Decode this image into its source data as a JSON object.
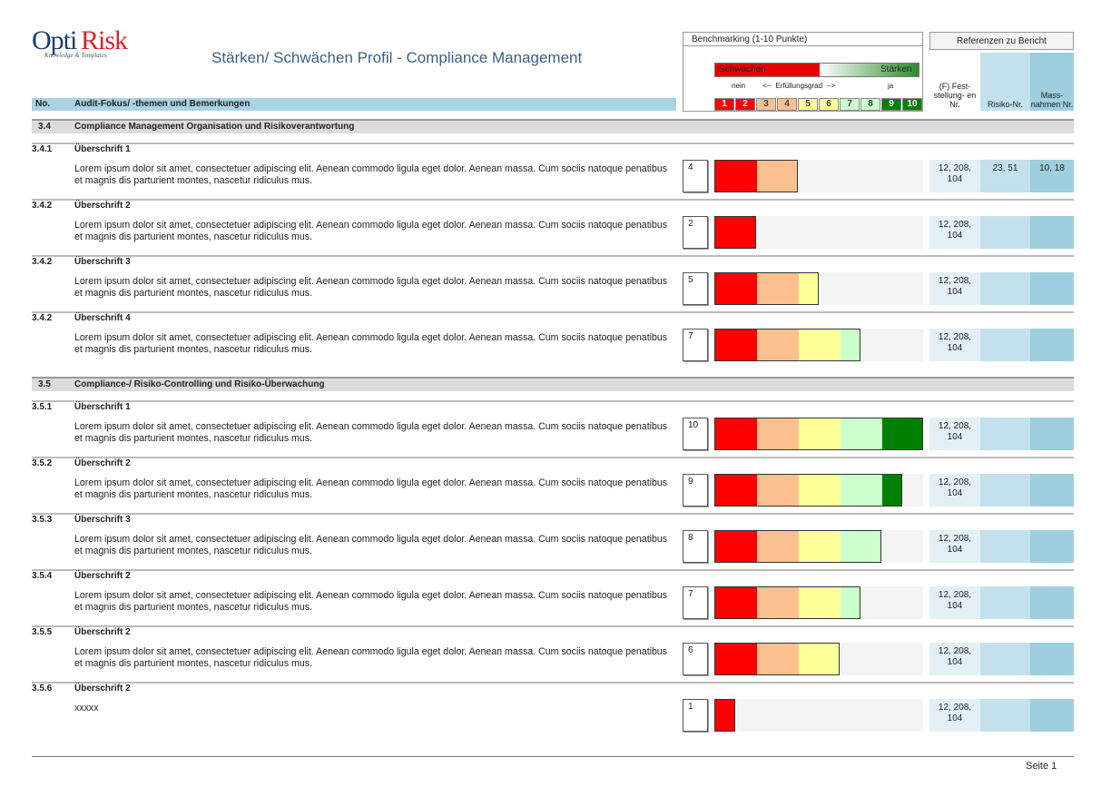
{
  "header": {
    "logo": {
      "name_1": "Opti",
      "name_2": "Risk",
      "tagline": "Knowledge & Templates"
    },
    "title": "Stärken/ Schwächen Profil - Compliance Management",
    "benchmark": {
      "title": "Benchmarking (1-10 Punkte)",
      "weak": "Schwächen",
      "strong": "Stärken",
      "no": "nein",
      "scale_label": "<--  Erfüllungsgrad  -->",
      "yes": "ja",
      "scale": [
        1,
        2,
        3,
        4,
        5,
        6,
        7,
        8,
        9,
        10
      ]
    },
    "references": {
      "title": "Referenzen zu Bericht",
      "columns": [
        "(F) Fest- stellung- en Nr.",
        "Risiko-Nr.",
        "Mass- nahmen Nr."
      ]
    },
    "columns": [
      "No.",
      "Audit-Fokus/ -themen und Bemerkungen"
    ]
  },
  "sections": [
    {
      "id": "3.4",
      "title": "Compliance Management Organisation und Risikoverantwortung",
      "items": [
        {
          "id": "3.4.1",
          "title": "Überschrift 1",
          "text": "Lorem ipsum dolor sit amet, consectetuer adipiscing elit. Aenean commodo ligula eget dolor. Aenean massa. Cum sociis natoque penatibus et magnis dis parturient montes, nascetur ridiculus mus.",
          "score": 4,
          "findings": "12, 208, 104",
          "risks": "23, 51",
          "measures": "10, 18"
        },
        {
          "id": "3.4.2",
          "title": "Überschrift 2",
          "text": "Lorem ipsum dolor sit amet, consectetuer adipiscing elit. Aenean commodo ligula eget dolor. Aenean massa. Cum sociis natoque penatibus et magnis dis parturient montes, nascetur ridiculus mus.",
          "score": 2,
          "findings": "12, 208, 104"
        },
        {
          "id": "3.4.2",
          "title": "Überschrift 3",
          "text": "Lorem ipsum dolor sit amet, consectetuer adipiscing elit. Aenean commodo ligula eget dolor. Aenean massa. Cum sociis natoque penatibus et magnis dis parturient montes, nascetur ridiculus mus.",
          "score": 5,
          "findings": "12, 208, 104"
        },
        {
          "id": "3.4.2",
          "title": "Überschrift 4",
          "text": "Lorem ipsum dolor sit amet, consectetuer adipiscing elit. Aenean commodo ligula eget dolor. Aenean massa. Cum sociis natoque penatibus et magnis dis parturient montes, nascetur ridiculus mus.",
          "score": 7,
          "findings": "12, 208, 104"
        }
      ]
    },
    {
      "id": "3.5",
      "title": "Compliance-/ Risiko-Controlling und Risiko-Überwachung",
      "items": [
        {
          "id": "3.5.1",
          "title": "Überschrift 1",
          "text": "Lorem ipsum dolor sit amet, consectetuer adipiscing elit. Aenean commodo ligula eget dolor. Aenean massa. Cum sociis natoque penatibus et magnis dis parturient montes, nascetur ridiculus mus.",
          "score": 10,
          "findings": "12, 208, 104"
        },
        {
          "id": "3.5.2",
          "title": "Überschrift 2",
          "text": "Lorem ipsum dolor sit amet, consectetuer adipiscing elit. Aenean commodo ligula eget dolor. Aenean massa. Cum sociis natoque penatibus et magnis dis parturient montes, nascetur ridiculus mus.",
          "score": 9,
          "findings": "12, 208, 104"
        },
        {
          "id": "3.5.3",
          "title": "Überschrift 3",
          "text": "Lorem ipsum dolor sit amet, consectetuer adipiscing elit. Aenean commodo ligula eget dolor. Aenean massa. Cum sociis natoque penatibus et magnis dis parturient montes, nascetur ridiculus mus.",
          "score": 8,
          "findings": "12, 208, 104"
        },
        {
          "id": "3.5.4",
          "title": "Überschrift 2",
          "text": "Lorem ipsum dolor sit amet, consectetuer adipiscing elit. Aenean commodo ligula eget dolor. Aenean massa. Cum sociis natoque penatibus et magnis dis parturient montes, nascetur ridiculus mus.",
          "score": 7,
          "findings": "12, 208, 104"
        },
        {
          "id": "3.5.5",
          "title": "Überschrift 2",
          "text": "Lorem ipsum dolor sit amet, consectetuer adipiscing elit. Aenean commodo ligula eget dolor. Aenean massa. Cum sociis natoque penatibus et magnis dis parturient montes, nascetur ridiculus mus.",
          "score": 6,
          "findings": "12, 208, 104"
        },
        {
          "id": "3.5.6",
          "title": "Überschrift 2",
          "text": "xxxxx",
          "score": 1,
          "findings": "12, 208, 104"
        }
      ]
    }
  ],
  "footer": {
    "page": "Seite 1"
  }
}
